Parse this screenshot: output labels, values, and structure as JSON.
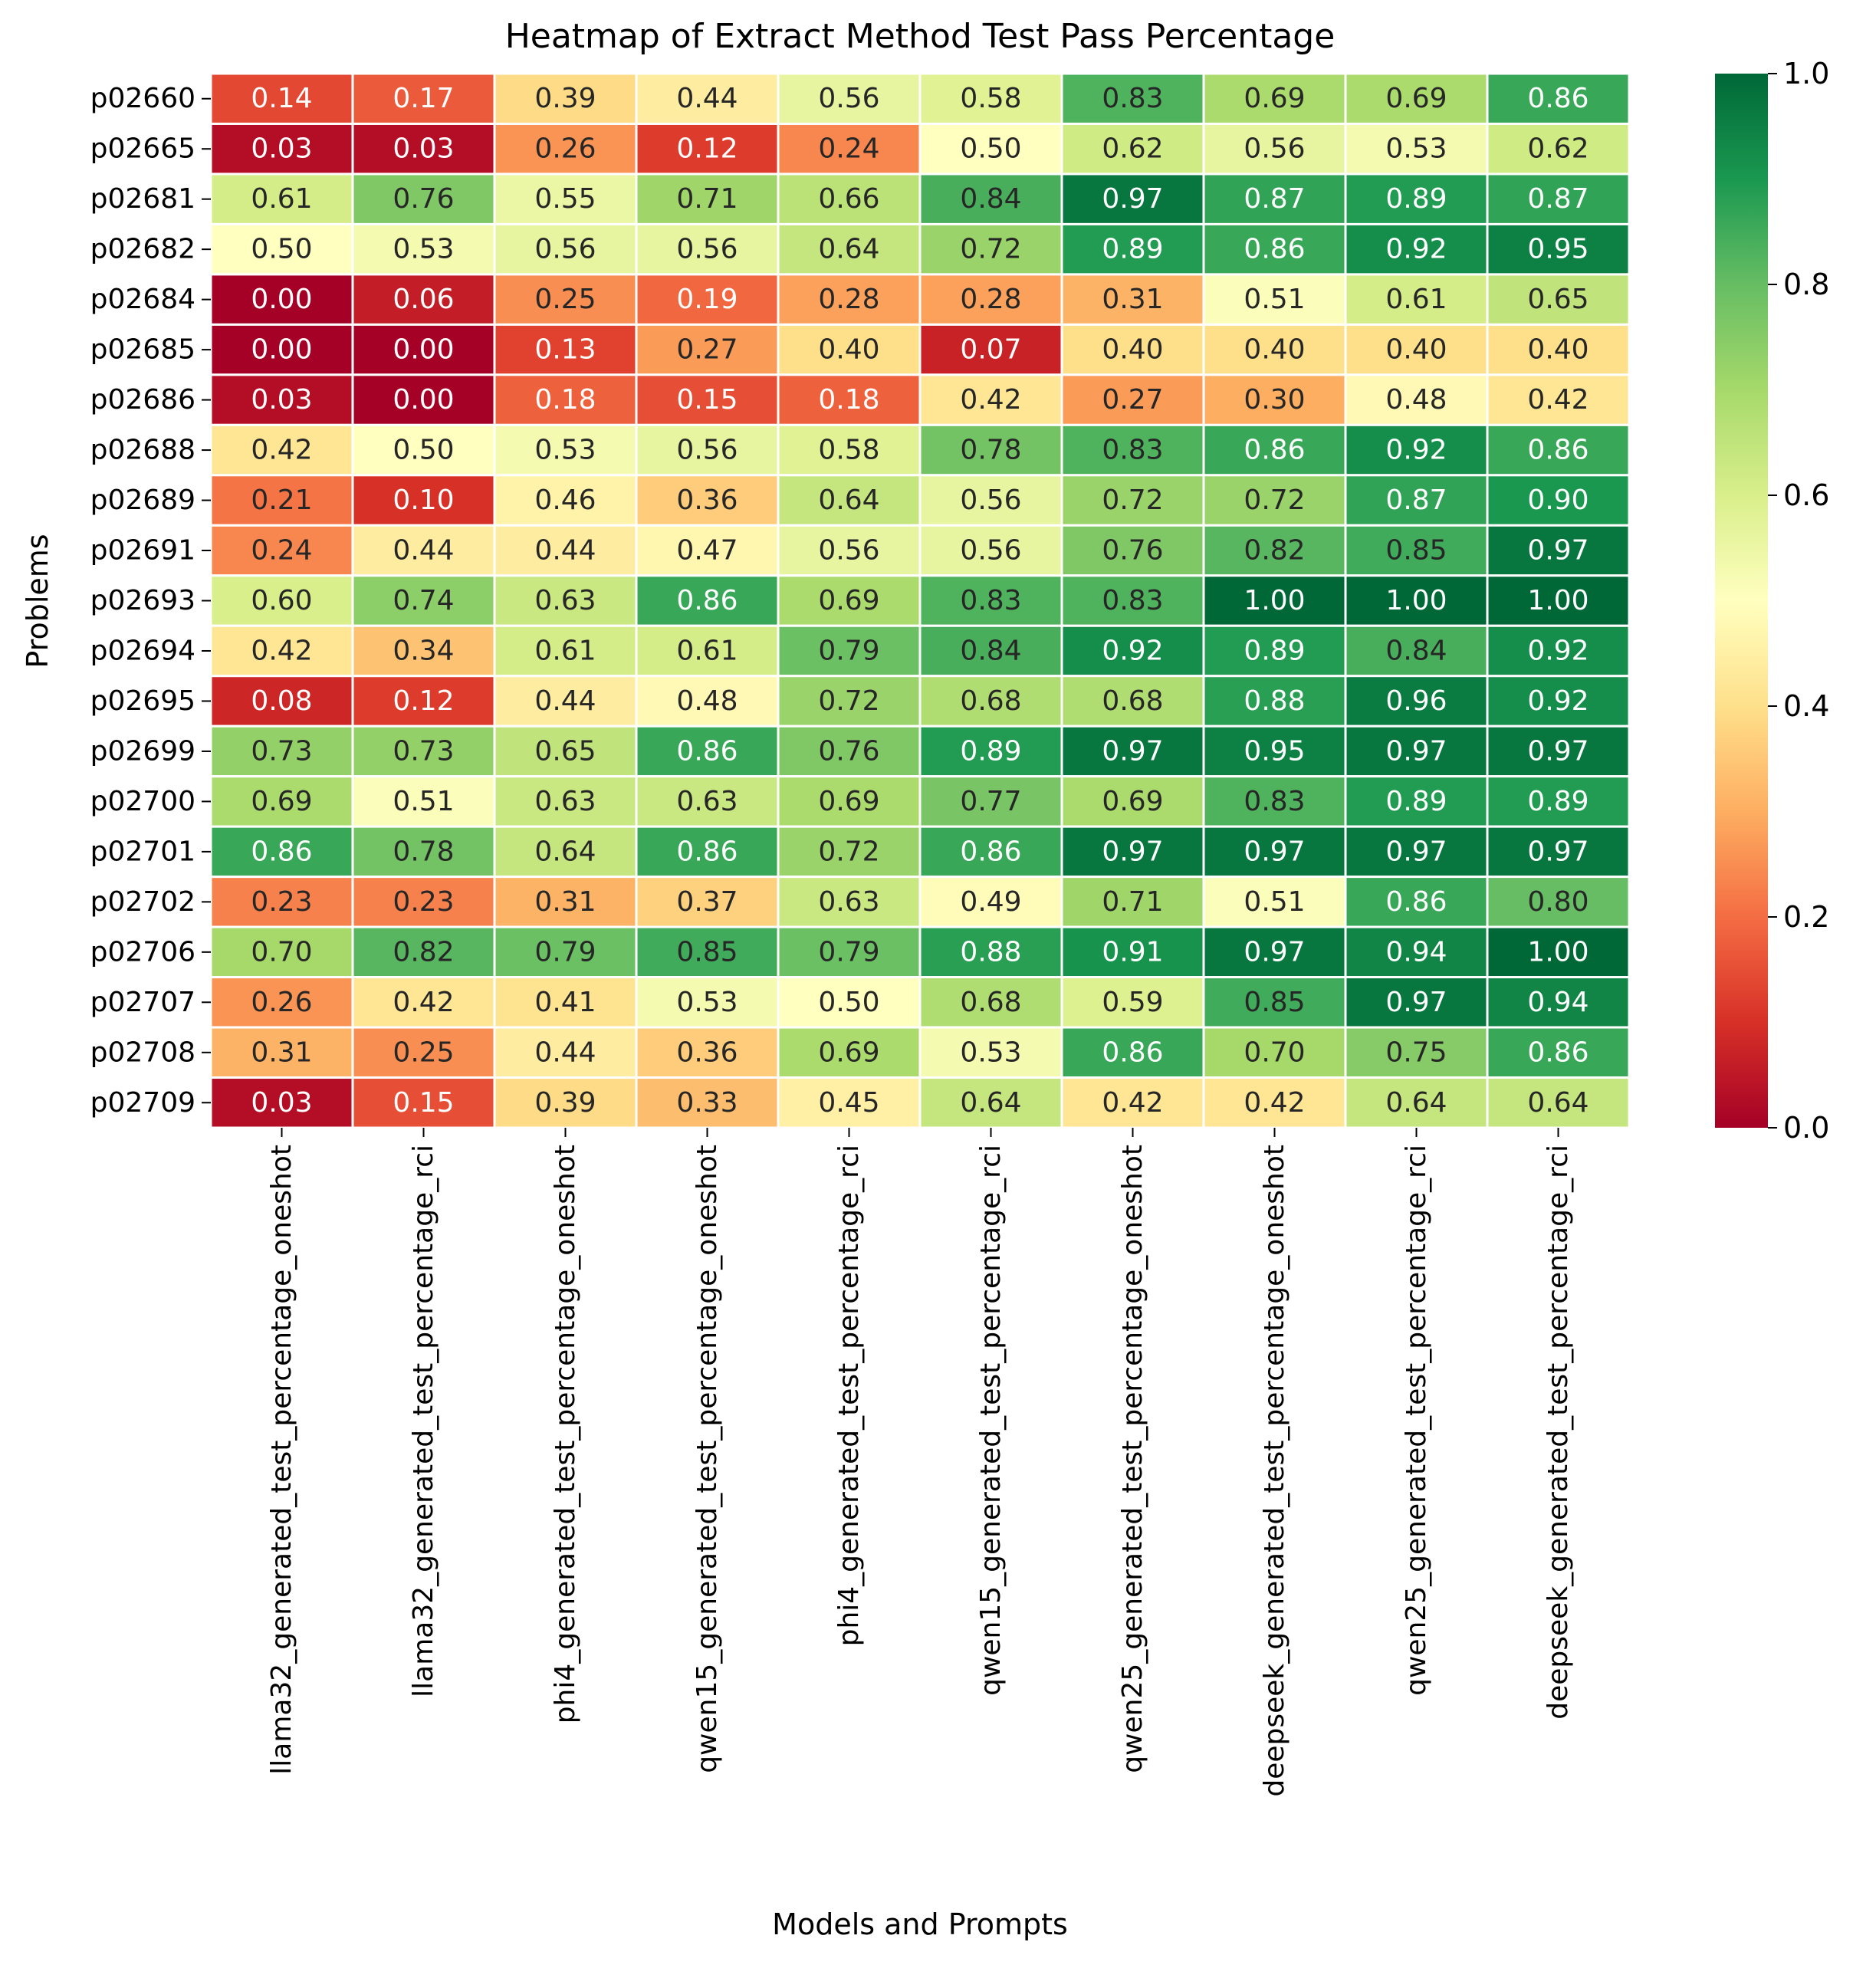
{
  "chart_data": {
    "type": "heatmap",
    "title": "Heatmap of Extract Method Test Pass Percentage",
    "xlabel": "Models and Prompts",
    "ylabel": "Problems",
    "rows": [
      "p02660",
      "p02665",
      "p02681",
      "p02682",
      "p02684",
      "p02685",
      "p02686",
      "p02688",
      "p02689",
      "p02691",
      "p02693",
      "p02694",
      "p02695",
      "p02699",
      "p02700",
      "p02701",
      "p02702",
      "p02706",
      "p02707",
      "p02708",
      "p02709"
    ],
    "columns": [
      "llama32_generated_test_percentage_oneshot",
      "llama32_generated_test_percentage_rci",
      "phi4_generated_test_percentage_oneshot",
      "qwen15_generated_test_percentage_oneshot",
      "phi4_generated_test_percentage_rci",
      "qwen15_generated_test_percentage_rci",
      "qwen25_generated_test_percentage_oneshot",
      "deepseek_generated_test_percentage_oneshot",
      "qwen25_generated_test_percentage_rci",
      "deepseek_generated_test_percentage_rci"
    ],
    "values": [
      [
        0.14,
        0.17,
        0.39,
        0.44,
        0.56,
        0.58,
        0.83,
        0.69,
        0.69,
        0.86
      ],
      [
        0.03,
        0.03,
        0.26,
        0.12,
        0.24,
        0.5,
        0.62,
        0.56,
        0.53,
        0.62
      ],
      [
        0.61,
        0.76,
        0.55,
        0.71,
        0.66,
        0.84,
        0.97,
        0.87,
        0.89,
        0.87
      ],
      [
        0.5,
        0.53,
        0.56,
        0.56,
        0.64,
        0.72,
        0.89,
        0.86,
        0.92,
        0.95
      ],
      [
        0.0,
        0.06,
        0.25,
        0.19,
        0.28,
        0.28,
        0.31,
        0.51,
        0.61,
        0.65
      ],
      [
        0.0,
        0.0,
        0.13,
        0.27,
        0.4,
        0.07,
        0.4,
        0.4,
        0.4,
        0.4
      ],
      [
        0.03,
        0.0,
        0.18,
        0.15,
        0.18,
        0.42,
        0.27,
        0.3,
        0.48,
        0.42
      ],
      [
        0.42,
        0.5,
        0.53,
        0.56,
        0.58,
        0.78,
        0.83,
        0.86,
        0.92,
        0.86
      ],
      [
        0.21,
        0.1,
        0.46,
        0.36,
        0.64,
        0.56,
        0.72,
        0.72,
        0.87,
        0.9
      ],
      [
        0.24,
        0.44,
        0.44,
        0.47,
        0.56,
        0.56,
        0.76,
        0.82,
        0.85,
        0.97
      ],
      [
        0.6,
        0.74,
        0.63,
        0.86,
        0.69,
        0.83,
        0.83,
        1.0,
        1.0,
        1.0
      ],
      [
        0.42,
        0.34,
        0.61,
        0.61,
        0.79,
        0.84,
        0.92,
        0.89,
        0.84,
        0.92
      ],
      [
        0.08,
        0.12,
        0.44,
        0.48,
        0.72,
        0.68,
        0.68,
        0.88,
        0.96,
        0.92
      ],
      [
        0.73,
        0.73,
        0.65,
        0.86,
        0.76,
        0.89,
        0.97,
        0.95,
        0.97,
        0.97
      ],
      [
        0.69,
        0.51,
        0.63,
        0.63,
        0.69,
        0.77,
        0.69,
        0.83,
        0.89,
        0.89
      ],
      [
        0.86,
        0.78,
        0.64,
        0.86,
        0.72,
        0.86,
        0.97,
        0.97,
        0.97,
        0.97
      ],
      [
        0.23,
        0.23,
        0.31,
        0.37,
        0.63,
        0.49,
        0.71,
        0.51,
        0.86,
        0.8
      ],
      [
        0.7,
        0.82,
        0.79,
        0.85,
        0.79,
        0.88,
        0.91,
        0.97,
        0.94,
        1.0
      ],
      [
        0.26,
        0.42,
        0.41,
        0.53,
        0.5,
        0.68,
        0.59,
        0.85,
        0.97,
        0.94
      ],
      [
        0.31,
        0.25,
        0.44,
        0.36,
        0.69,
        0.53,
        0.86,
        0.7,
        0.75,
        0.86
      ],
      [
        0.03,
        0.15,
        0.39,
        0.33,
        0.45,
        0.64,
        0.42,
        0.42,
        0.64,
        0.64
      ]
    ],
    "colormap": "RdYlGn",
    "vmin": 0.0,
    "vmax": 1.0,
    "colorbar_ticks": [
      0.0,
      0.2,
      0.4,
      0.6,
      0.8,
      1.0
    ],
    "colorbar_tick_labels": [
      "0.0",
      "0.2",
      "0.4",
      "0.6",
      "0.8",
      "1.0"
    ],
    "annotation_format": "0.00",
    "grid": true,
    "legend": "colorbar right"
  }
}
